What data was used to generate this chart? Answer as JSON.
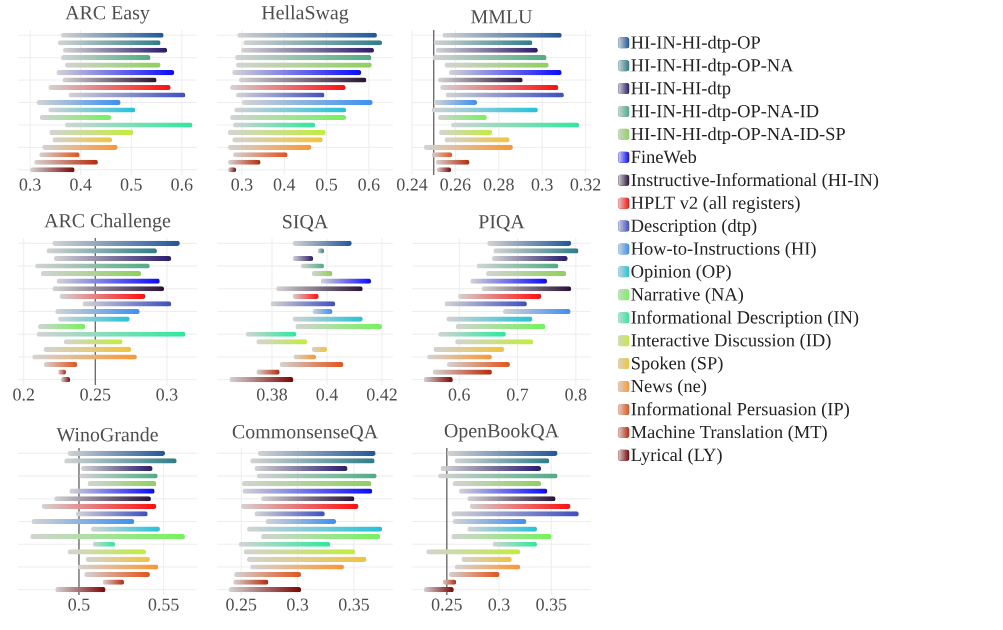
{
  "chart_data": [
    {
      "type": "bar",
      "orientation": "horizontal",
      "title": "ARC Easy",
      "categories": [
        null
      ],
      "xlim": [
        0.276,
        0.63
      ],
      "xticks": [
        0.3,
        0.4,
        0.5,
        0.6
      ],
      "grid": true,
      "legend": "right",
      "series": [
        {
          "name": "HI-IN-HI-dtp-OP",
          "color": "#1f5799",
          "base": [
            0.361
          ],
          "values": [
            0.203
          ]
        },
        {
          "name": "HI-IN-HI-dtp-OP-NA",
          "color": "#2e7d87",
          "base": [
            0.355
          ],
          "values": [
            0.203
          ]
        },
        {
          "name": "HI-IN-HI-dtp",
          "color": "#2b1b6b",
          "base": [
            0.365
          ],
          "values": [
            0.206
          ]
        },
        {
          "name": "HI-IN-HI-dtp-OP-NA-ID",
          "color": "#4fac85",
          "base": [
            0.361
          ],
          "values": [
            0.177
          ]
        },
        {
          "name": "HI-IN-HI-dtp-OP-NA-ID-SP",
          "color": "#8fd060",
          "base": [
            0.369
          ],
          "values": [
            0.189
          ]
        },
        {
          "name": "FineWeb",
          "color": "#0a0aff",
          "base": [
            0.352
          ],
          "values": [
            0.233
          ]
        },
        {
          "name": "Instructive-Informational (HI-IN)",
          "color": "#2a1235",
          "base": [
            0.364
          ],
          "values": [
            0.186
          ]
        },
        {
          "name": "HPLT v2 (all registers)",
          "color": "#ff0d0d",
          "base": [
            0.336
          ],
          "values": [
            0.242
          ]
        },
        {
          "name": "Description (dtp)",
          "color": "#3f4fbf",
          "base": [
            0.376
          ],
          "values": [
            0.231
          ]
        },
        {
          "name": "How-to-Instructions (HI)",
          "color": "#3d8ff0",
          "base": [
            0.313
          ],
          "values": [
            0.166
          ]
        },
        {
          "name": "Opinion (OP)",
          "color": "#22c3d9",
          "base": [
            0.336
          ],
          "values": [
            0.172
          ]
        },
        {
          "name": "Narrative (NA)",
          "color": "#74f25c",
          "base": [
            0.319
          ],
          "values": [
            0.141
          ]
        },
        {
          "name": "Informational Description (IN)",
          "color": "#2de89c",
          "base": [
            0.369
          ],
          "values": [
            0.252
          ]
        },
        {
          "name": "Interactive Discussion (ID)",
          "color": "#c2ec3c",
          "base": [
            0.338
          ],
          "values": [
            0.166
          ]
        },
        {
          "name": "Spoken (SP)",
          "color": "#f0c43a",
          "base": [
            0.344
          ],
          "values": [
            0.118
          ]
        },
        {
          "name": "News (ne)",
          "color": "#fb9632",
          "base": [
            0.324
          ],
          "values": [
            0.149
          ]
        },
        {
          "name": "Informational Persuasion (IP)",
          "color": "#e4521a",
          "base": [
            0.318
          ],
          "values": [
            0.08
          ]
        },
        {
          "name": "Machine Translation (MT)",
          "color": "#b72a0a",
          "base": [
            0.308
          ],
          "values": [
            0.126
          ]
        },
        {
          "name": "Lyrical (LY)",
          "color": "#7a0505",
          "base": [
            0.3
          ],
          "values": [
            0.088
          ]
        }
      ]
    },
    {
      "type": "bar",
      "orientation": "horizontal",
      "title": "HellaSwag",
      "categories": [
        null
      ],
      "xlim": [
        0.241,
        0.657
      ],
      "xticks": [
        0.3,
        0.4,
        0.5,
        0.6
      ],
      "grid": true,
      "series": [
        {
          "color": "#1f5799",
          "base": [
            0.289
          ],
          "values": [
            0.33
          ]
        },
        {
          "color": "#2e7d87",
          "base": [
            0.303
          ],
          "values": [
            0.328
          ]
        },
        {
          "color": "#2b1b6b",
          "base": [
            0.298
          ],
          "values": [
            0.314
          ]
        },
        {
          "color": "#4fac85",
          "base": [
            0.284
          ],
          "values": [
            0.322
          ]
        },
        {
          "color": "#8fd060",
          "base": [
            0.286
          ],
          "values": [
            0.321
          ]
        },
        {
          "color": "#0a0aff",
          "base": [
            0.277
          ],
          "values": [
            0.305
          ]
        },
        {
          "color": "#2a1235",
          "base": [
            0.293
          ],
          "values": [
            0.301
          ]
        },
        {
          "color": "#ff0d0d",
          "base": [
            0.272
          ],
          "values": [
            0.273
          ]
        },
        {
          "color": "#3f4fbf",
          "base": [
            0.286
          ],
          "values": [
            0.209
          ]
        },
        {
          "color": "#3d8ff0",
          "base": [
            0.3
          ],
          "values": [
            0.309
          ]
        },
        {
          "color": "#22c3d9",
          "base": [
            0.282
          ],
          "values": [
            0.264
          ]
        },
        {
          "color": "#74f25c",
          "base": [
            0.272
          ],
          "values": [
            0.274
          ]
        },
        {
          "color": "#2de89c",
          "base": [
            0.279
          ],
          "values": [
            0.194
          ]
        },
        {
          "color": "#c2ec3c",
          "base": [
            0.267
          ],
          "values": [
            0.231
          ]
        },
        {
          "color": "#f0c43a",
          "base": [
            0.277
          ],
          "values": [
            0.214
          ]
        },
        {
          "color": "#fb9632",
          "base": [
            0.267
          ],
          "values": [
            0.197
          ]
        },
        {
          "color": "#e4521a",
          "base": [
            0.279
          ],
          "values": [
            0.129
          ]
        },
        {
          "color": "#b72a0a",
          "base": [
            0.267
          ],
          "values": [
            0.077
          ]
        },
        {
          "color": "#7a0505",
          "base": [
            0.267
          ],
          "values": [
            0.019
          ]
        }
      ]
    },
    {
      "type": "bar",
      "orientation": "horizontal",
      "title": "MMLU",
      "categories": [
        null
      ],
      "xlim": [
        0.24,
        0.3225
      ],
      "xticks": [
        0.24,
        0.26,
        0.28,
        0.3,
        0.32
      ],
      "grid": true,
      "ref_lines": [
        {
          "axis": "x",
          "value": 0.25,
          "color": "#6e6e6e"
        }
      ],
      "series": [
        {
          "color": "#1f5799",
          "base": [
            0.254
          ],
          "values": [
            0.055
          ]
        },
        {
          "color": "#2e7d87",
          "base": [
            0.25
          ],
          "values": [
            0.0455
          ]
        },
        {
          "color": "#2b1b6b",
          "base": [
            0.251
          ],
          "values": [
            0.047
          ]
        },
        {
          "color": "#4fac85",
          "base": [
            0.2495
          ],
          "values": [
            0.0525
          ]
        },
        {
          "color": "#8fd060",
          "base": [
            0.255
          ],
          "values": [
            0.048
          ]
        },
        {
          "color": "#0a0aff",
          "base": [
            0.257
          ],
          "values": [
            0.052
          ]
        },
        {
          "color": "#2a1235",
          "base": [
            0.252
          ],
          "values": [
            0.039
          ]
        },
        {
          "color": "#ff0d0d",
          "base": [
            0.253
          ],
          "values": [
            0.0545
          ]
        },
        {
          "color": "#3f4fbf",
          "base": [
            0.2555
          ],
          "values": [
            0.0545
          ]
        },
        {
          "color": "#3d8ff0",
          "base": [
            0.25
          ],
          "values": [
            0.02
          ]
        },
        {
          "color": "#22c3d9",
          "base": [
            0.249
          ],
          "values": [
            0.049
          ]
        },
        {
          "color": "#74f25c",
          "base": [
            0.252
          ],
          "values": [
            0.0225
          ]
        },
        {
          "color": "#2de89c",
          "base": [
            0.258
          ],
          "values": [
            0.059
          ]
        },
        {
          "color": "#c2ec3c",
          "base": [
            0.2525
          ],
          "values": [
            0.0245
          ]
        },
        {
          "color": "#f0c43a",
          "base": [
            0.255
          ],
          "values": [
            0.03
          ]
        },
        {
          "color": "#fb9632",
          "base": [
            0.2455
          ],
          "values": [
            0.041
          ]
        },
        {
          "color": "#e4521a",
          "base": [
            0.249
          ],
          "values": [
            0.0095
          ]
        },
        {
          "color": "#b72a0a",
          "base": [
            0.251
          ],
          "values": [
            0.0155
          ]
        },
        {
          "color": "#7a0505",
          "base": [
            0.2515
          ],
          "values": [
            0.0065
          ]
        }
      ]
    },
    {
      "type": "bar",
      "orientation": "horizontal",
      "title": "ARC Challenge",
      "categories": [
        null
      ],
      "xlim": [
        0.196,
        0.321
      ],
      "xticks": [
        0.2,
        0.25,
        0.3
      ],
      "grid": true,
      "ref_lines": [
        {
          "axis": "x",
          "value": 0.25,
          "color": "#6e6e6e"
        }
      ],
      "series": [
        {
          "color": "#1f5799",
          "base": [
            0.22
          ],
          "values": [
            0.089
          ]
        },
        {
          "color": "#2e7d87",
          "base": [
            0.216
          ],
          "values": [
            0.077
          ]
        },
        {
          "color": "#2b1b6b",
          "base": [
            0.221
          ],
          "values": [
            0.082
          ]
        },
        {
          "color": "#4fac85",
          "base": [
            0.208
          ],
          "values": [
            0.08
          ]
        },
        {
          "color": "#8fd060",
          "base": [
            0.212
          ],
          "values": [
            0.07
          ]
        },
        {
          "color": "#0a0aff",
          "base": [
            0.223
          ],
          "values": [
            0.072
          ]
        },
        {
          "color": "#2a1235",
          "base": [
            0.22
          ],
          "values": [
            0.078
          ]
        },
        {
          "color": "#ff0d0d",
          "base": [
            0.225
          ],
          "values": [
            0.06
          ]
        },
        {
          "color": "#3f4fbf",
          "base": [
            0.241
          ],
          "values": [
            0.062
          ]
        },
        {
          "color": "#3d8ff0",
          "base": [
            0.222
          ],
          "values": [
            0.059
          ]
        },
        {
          "color": "#22c3d9",
          "base": [
            0.224
          ],
          "values": [
            0.05
          ]
        },
        {
          "color": "#74f25c",
          "base": [
            0.21
          ],
          "values": [
            0.033
          ]
        },
        {
          "color": "#2de89c",
          "base": [
            0.209
          ],
          "values": [
            0.104
          ]
        },
        {
          "color": "#c2ec3c",
          "base": [
            0.228
          ],
          "values": [
            0.041
          ]
        },
        {
          "color": "#f0c43a",
          "base": [
            0.214
          ],
          "values": [
            0.061
          ]
        },
        {
          "color": "#fb9632",
          "base": [
            0.206
          ],
          "values": [
            0.073
          ]
        },
        {
          "color": "#e4521a",
          "base": [
            0.214
          ],
          "values": [
            0.0235
          ]
        },
        {
          "color": "#b72a0a",
          "base": [
            0.224
          ],
          "values": [
            0.0055
          ]
        },
        {
          "color": "#7a0505",
          "base": [
            0.226
          ],
          "values": [
            0.0065
          ]
        }
      ]
    },
    {
      "type": "bar",
      "orientation": "horizontal",
      "title": "SIQA",
      "categories": [
        null
      ],
      "xlim": [
        0.36,
        0.424
      ],
      "xticks": [
        0.38,
        0.4,
        0.42
      ],
      "grid": true,
      "series": [
        {
          "color": "#1f5799",
          "base": [
            0.3875
          ],
          "values": [
            0.0215
          ]
        },
        {
          "color": "#2e7d87",
          "base": [
            0.3966
          ],
          "values": [
            0.0023
          ]
        },
        {
          "color": "#2b1b6b",
          "base": [
            0.3875
          ],
          "values": [
            0.0075
          ]
        },
        {
          "color": "#4fac85",
          "base": [
            0.3905
          ],
          "values": [
            0.0084
          ]
        },
        {
          "color": "#8fd060",
          "base": [
            0.3945
          ],
          "values": [
            0.0075
          ]
        },
        {
          "color": "#0a0aff",
          "base": [
            0.3977
          ],
          "values": [
            0.0183
          ]
        },
        {
          "color": "#2a1235",
          "base": [
            0.3815
          ],
          "values": [
            0.0315
          ]
        },
        {
          "color": "#ff0d0d",
          "base": [
            0.3875
          ],
          "values": [
            0.0095
          ]
        },
        {
          "color": "#3f4fbf",
          "base": [
            0.3795
          ],
          "values": [
            0.0235
          ]
        },
        {
          "color": "#3d8ff0",
          "base": [
            0.3947
          ],
          "values": [
            0.0073
          ]
        },
        {
          "color": "#22c3d9",
          "base": [
            0.3875
          ],
          "values": [
            0.0255
          ]
        },
        {
          "color": "#74f25c",
          "base": [
            0.3885
          ],
          "values": [
            0.0315
          ]
        },
        {
          "color": "#2de89c",
          "base": [
            0.3705
          ],
          "values": [
            0.0183
          ]
        },
        {
          "color": "#c2ec3c",
          "base": [
            0.3743
          ],
          "values": [
            0.0185
          ]
        },
        {
          "color": "#f0c43a",
          "base": [
            0.3945
          ],
          "values": [
            0.0055
          ]
        },
        {
          "color": "#fb9632",
          "base": [
            0.3878
          ],
          "values": [
            0.0082
          ]
        },
        {
          "color": "#e4521a",
          "base": [
            0.3828
          ],
          "values": [
            0.0232
          ]
        },
        {
          "color": "#b72a0a",
          "base": [
            0.3743
          ],
          "values": [
            0.0085
          ]
        },
        {
          "color": "#7a0505",
          "base": [
            0.3645
          ],
          "values": [
            0.0233
          ]
        }
      ]
    },
    {
      "type": "bar",
      "orientation": "horizontal",
      "title": "PIQA",
      "categories": [
        null
      ],
      "xlim": [
        0.519,
        0.826
      ],
      "xticks": [
        0.6,
        0.7,
        0.8
      ],
      "grid": true,
      "series": [
        {
          "color": "#1f5799",
          "base": [
            0.648
          ],
          "values": [
            0.144
          ]
        },
        {
          "color": "#2e7d87",
          "base": [
            0.6585
          ],
          "values": [
            0.146
          ]
        },
        {
          "color": "#2b1b6b",
          "base": [
            0.656
          ],
          "values": [
            0.13
          ]
        },
        {
          "color": "#4fac85",
          "base": [
            0.63
          ],
          "values": [
            0.14
          ]
        },
        {
          "color": "#8fd060",
          "base": [
            0.646
          ],
          "values": [
            0.1375
          ]
        },
        {
          "color": "#0a0aff",
          "base": [
            0.619
          ],
          "values": [
            0.1315
          ]
        },
        {
          "color": "#2a1235",
          "base": [
            0.6385
          ],
          "values": [
            0.1535
          ]
        },
        {
          "color": "#ff0d0d",
          "base": [
            0.598
          ],
          "values": [
            0.143
          ]
        },
        {
          "color": "#3f4fbf",
          "base": [
            0.575
          ],
          "values": [
            0.141
          ]
        },
        {
          "color": "#3d8ff0",
          "base": [
            0.675
          ],
          "values": [
            0.116
          ]
        },
        {
          "color": "#22c3d9",
          "base": [
            0.578
          ],
          "values": [
            0.1475
          ]
        },
        {
          "color": "#74f25c",
          "base": [
            0.594
          ],
          "values": [
            0.154
          ]
        },
        {
          "color": "#2de89c",
          "base": [
            0.564
          ],
          "values": [
            0.116
          ]
        },
        {
          "color": "#c2ec3c",
          "base": [
            0.593
          ],
          "values": [
            0.134
          ]
        },
        {
          "color": "#f0c43a",
          "base": [
            0.556
          ],
          "values": [
            0.121
          ]
        },
        {
          "color": "#fb9632",
          "base": [
            0.545
          ],
          "values": [
            0.111
          ]
        },
        {
          "color": "#e4521a",
          "base": [
            0.579
          ],
          "values": [
            0.108
          ]
        },
        {
          "color": "#b72a0a",
          "base": [
            0.5545
          ],
          "values": [
            0.1015
          ]
        },
        {
          "color": "#7a0505",
          "base": [
            0.539
          ],
          "values": [
            0.05
          ]
        }
      ]
    },
    {
      "type": "bar",
      "orientation": "horizontal",
      "title": "WinoGrande",
      "categories": [
        null
      ],
      "xlim": [
        0.464,
        0.5697
      ],
      "xticks": [
        0.5,
        0.55
      ],
      "grid": true,
      "ref_lines": [
        {
          "axis": "x",
          "value": 0.5,
          "color": "#6e6e6e"
        }
      ],
      "series": [
        {
          "color": "#1f5799",
          "base": [
            0.4933
          ],
          "values": [
            0.0575
          ]
        },
        {
          "color": "#2e7d87",
          "base": [
            0.4913
          ],
          "values": [
            0.0664
          ]
        },
        {
          "color": "#2b1b6b",
          "base": [
            0.5012
          ],
          "values": [
            0.0423
          ]
        },
        {
          "color": "#4fac85",
          "base": [
            0.5002
          ],
          "values": [
            0.0463
          ]
        },
        {
          "color": "#8fd060",
          "base": [
            0.5051
          ],
          "values": [
            0.0406
          ]
        },
        {
          "color": "#0a0aff",
          "base": [
            0.4943
          ],
          "values": [
            0.0504
          ]
        },
        {
          "color": "#2a1235",
          "base": [
            0.4854
          ],
          "values": [
            0.0571
          ]
        },
        {
          "color": "#ff0d0d",
          "base": [
            0.478
          ],
          "values": [
            0.0677
          ]
        },
        {
          "color": "#3f4fbf",
          "base": [
            0.4982
          ],
          "values": [
            0.0424
          ]
        },
        {
          "color": "#3d8ff0",
          "base": [
            0.472
          ],
          "values": [
            0.0607
          ]
        },
        {
          "color": "#22c3d9",
          "base": [
            0.5071
          ],
          "values": [
            0.0407
          ]
        },
        {
          "color": "#74f25c",
          "base": [
            0.4713
          ],
          "values": [
            0.0913
          ]
        },
        {
          "color": "#2de89c",
          "base": [
            0.5081
          ],
          "values": [
            0.0132
          ]
        },
        {
          "color": "#c2ec3c",
          "base": [
            0.4933
          ],
          "values": [
            0.0463
          ]
        },
        {
          "color": "#f0c43a",
          "base": [
            0.5041
          ],
          "values": [
            0.0378
          ]
        },
        {
          "color": "#fb9632",
          "base": [
            0.4992
          ],
          "values": [
            0.0477
          ]
        },
        {
          "color": "#e4521a",
          "base": [
            0.5031
          ],
          "values": [
            0.0388
          ]
        },
        {
          "color": "#b72a0a",
          "base": [
            0.514
          ],
          "values": [
            0.0126
          ]
        },
        {
          "color": "#7a0505",
          "base": [
            0.486
          ],
          "values": [
            0.0297
          ]
        }
      ]
    },
    {
      "type": "bar",
      "orientation": "horizontal",
      "title": "CommonsenseQA",
      "categories": [
        null
      ],
      "xlim": [
        0.2285,
        0.3846
      ],
      "xticks": [
        0.25,
        0.3,
        0.35
      ],
      "grid": true,
      "series": [
        {
          "color": "#1f5799",
          "base": [
            0.2647
          ],
          "values": [
            0.1045
          ]
        },
        {
          "color": "#2e7d87",
          "base": [
            0.258
          ],
          "values": [
            0.1103
          ]
        },
        {
          "color": "#2b1b6b",
          "base": [
            0.2618
          ],
          "values": [
            0.0825
          ]
        },
        {
          "color": "#4fac85",
          "base": [
            0.2639
          ],
          "values": [
            0.1062
          ]
        },
        {
          "color": "#8fd060",
          "base": [
            0.2507
          ],
          "values": [
            0.1147
          ]
        },
        {
          "color": "#0a0aff",
          "base": [
            0.251
          ],
          "values": [
            0.1152
          ]
        },
        {
          "color": "#2a1235",
          "base": [
            0.2676
          ],
          "values": [
            0.0828
          ]
        },
        {
          "color": "#ff0d0d",
          "base": [
            0.2498
          ],
          "values": [
            0.1042
          ]
        },
        {
          "color": "#3f4fbf",
          "base": [
            0.2618
          ],
          "values": [
            0.0623
          ]
        },
        {
          "color": "#3d8ff0",
          "base": [
            0.2715
          ],
          "values": [
            0.0626
          ]
        },
        {
          "color": "#22c3d9",
          "base": [
            0.2551
          ],
          "values": [
            0.1199
          ]
        },
        {
          "color": "#74f25c",
          "base": [
            0.2676
          ],
          "values": [
            0.1056
          ]
        },
        {
          "color": "#2de89c",
          "base": [
            0.2478
          ],
          "values": [
            0.0813
          ]
        },
        {
          "color": "#c2ec3c",
          "base": [
            0.2522
          ],
          "values": [
            0.0989
          ]
        },
        {
          "color": "#f0c43a",
          "base": [
            0.2551
          ],
          "values": [
            0.1059
          ]
        },
        {
          "color": "#fb9632",
          "base": [
            0.258
          ],
          "values": [
            0.0831
          ]
        },
        {
          "color": "#e4521a",
          "base": [
            0.2437
          ],
          "values": [
            0.0594
          ]
        },
        {
          "color": "#b72a0a",
          "base": [
            0.2428
          ],
          "values": [
            0.0313
          ]
        },
        {
          "color": "#7a0505",
          "base": [
            0.239
          ],
          "values": [
            0.0641
          ]
        }
      ]
    },
    {
      "type": "bar",
      "orientation": "horizontal",
      "title": "OpenBookQA",
      "categories": [
        null
      ],
      "xlim": [
        0.2167,
        0.388
      ],
      "xticks": [
        0.25,
        0.3,
        0.35
      ],
      "grid": true,
      "ref_lines": [
        {
          "axis": "x",
          "value": 0.25,
          "color": "#6e6e6e"
        }
      ],
      "series": [
        {
          "color": "#1f5799",
          "base": [
            0.2503
          ],
          "values": [
            0.1057
          ]
        },
        {
          "color": "#2e7d87",
          "base": [
            0.2576
          ],
          "values": [
            0.0905
          ]
        },
        {
          "color": "#2b1b6b",
          "base": [
            0.244
          ],
          "values": [
            0.0962
          ]
        },
        {
          "color": "#4fac85",
          "base": [
            0.2417
          ],
          "values": [
            0.1143
          ]
        },
        {
          "color": "#8fd060",
          "base": [
            0.2557
          ],
          "values": [
            0.0845
          ]
        },
        {
          "color": "#0a0aff",
          "base": [
            0.2617
          ],
          "values": [
            0.0845
          ]
        },
        {
          "color": "#2a1235",
          "base": [
            0.2697
          ],
          "values": [
            0.0844
          ]
        },
        {
          "color": "#ff0d0d",
          "base": [
            0.2719
          ],
          "values": [
            0.0965
          ]
        },
        {
          "color": "#3f4fbf",
          "base": [
            0.2544
          ],
          "values": [
            0.1219
          ]
        },
        {
          "color": "#3d8ff0",
          "base": [
            0.2557
          ],
          "values": [
            0.0705
          ]
        },
        {
          "color": "#22c3d9",
          "base": [
            0.2697
          ],
          "values": [
            0.0666
          ]
        },
        {
          "color": "#74f25c",
          "base": [
            0.2544
          ],
          "values": [
            0.0959
          ]
        },
        {
          "color": "#2de89c",
          "base": [
            0.2938
          ],
          "values": [
            0.0425
          ]
        },
        {
          "color": "#c2ec3c",
          "base": [
            0.2303
          ],
          "values": [
            0.0899
          ]
        },
        {
          "color": "#f0c43a",
          "base": [
            0.264
          ],
          "values": [
            0.0482
          ]
        },
        {
          "color": "#fb9632",
          "base": [
            0.2576
          ],
          "values": [
            0.0626
          ]
        },
        {
          "color": "#e4521a",
          "base": [
            0.2519
          ],
          "values": [
            0.0486
          ]
        },
        {
          "color": "#b72a0a",
          "base": [
            0.2459
          ],
          "values": [
            0.013
          ]
        },
        {
          "color": "#7a0505",
          "base": [
            0.2281
          ],
          "values": [
            0.0286
          ]
        }
      ]
    }
  ]
}
